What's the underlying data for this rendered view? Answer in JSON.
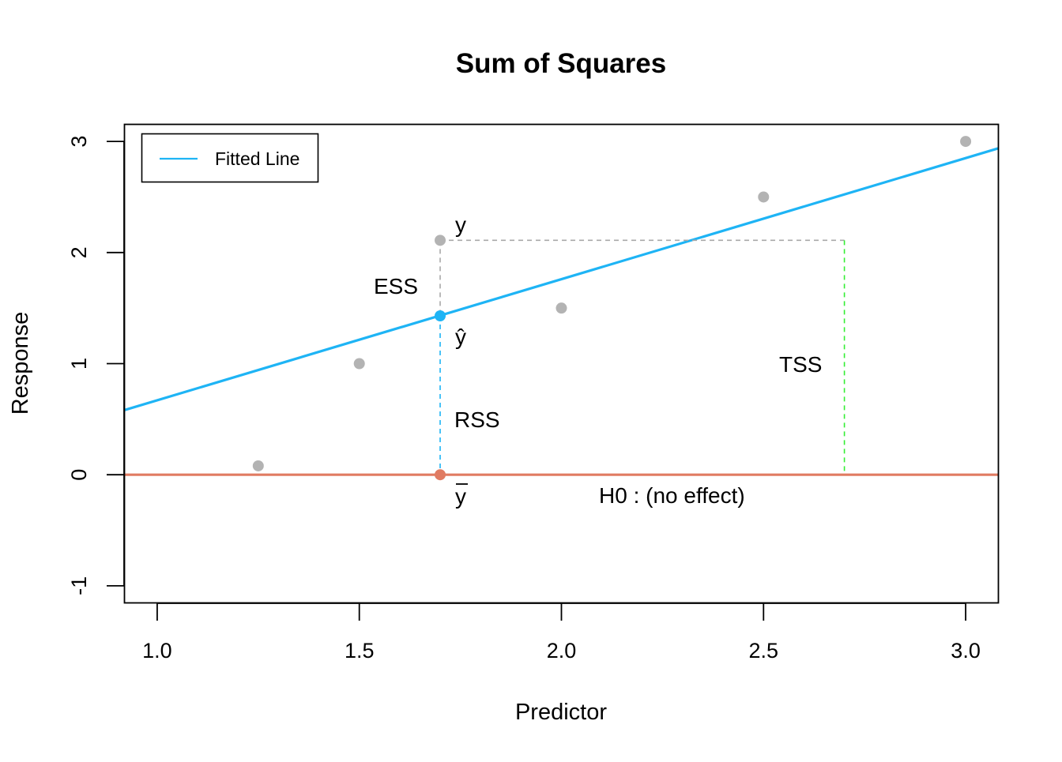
{
  "chart_data": {
    "type": "scatter",
    "title": "Sum of Squares",
    "xlabel": "Predictor",
    "ylabel": "Response",
    "xlim": [
      0.92,
      3.08
    ],
    "ylim": [
      -1.15,
      3.15
    ],
    "x_ticks": [
      1.0,
      1.5,
      2.0,
      2.5,
      3.0
    ],
    "x_tick_labels": [
      "1.0",
      "1.5",
      "2.0",
      "2.5",
      "3.0"
    ],
    "y_ticks": [
      -1,
      0,
      1,
      2,
      3
    ],
    "y_tick_labels": [
      "-1",
      "0",
      "1",
      "2",
      "3"
    ],
    "grid": false,
    "legend": {
      "position": "top-left",
      "entries": [
        {
          "label": "Fitted Line",
          "color": "#1eb4f5"
        }
      ]
    },
    "points": {
      "color": "#b3b3b3",
      "x": [
        1.25,
        1.5,
        1.7,
        2.0,
        2.5,
        3.0
      ],
      "y": [
        0.08,
        1.0,
        2.11,
        1.5,
        2.5,
        3.0
      ]
    },
    "fitted_line": {
      "name": "Fitted Line",
      "color": "#1eb4f5",
      "intercept": -0.42,
      "slope": 1.09
    },
    "baseline": {
      "y": 0,
      "color": "#e07b62"
    },
    "highlight": {
      "x": 1.7,
      "y": 2.11,
      "y_hat": 1.43,
      "y_bar": 0,
      "y_hat_color": "#1eb4f5",
      "y_bar_color": "#e07b62"
    },
    "tss_line": {
      "x": 2.7,
      "y_top": 2.11,
      "color": "#33ee33"
    },
    "annotations": {
      "y_label": "y",
      "y_hat_label": "ŷ",
      "y_bar_label": "y",
      "ess_label": "ESS",
      "rss_label": "RSS",
      "tss_label": "TSS",
      "h0_label": "H0 : (no effect)"
    }
  }
}
